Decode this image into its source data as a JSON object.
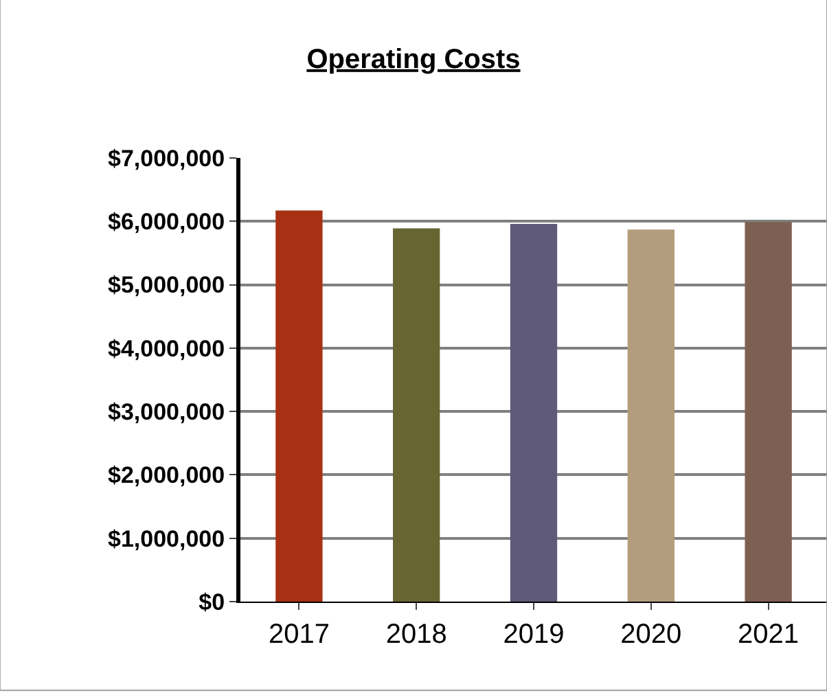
{
  "chart_data": {
    "type": "bar",
    "title": "Operating Costs",
    "categories": [
      "2017",
      "2018",
      "2019",
      "2020",
      "2021"
    ],
    "values": [
      6170000,
      5890000,
      5960000,
      5870000,
      5990000
    ],
    "colors": [
      "#a63114",
      "#676633",
      "#5f5a78",
      "#b29d7d",
      "#7e6052"
    ],
    "ylim": [
      0,
      7000000
    ],
    "yticks": [
      {
        "value": 0,
        "label": "$0"
      },
      {
        "value": 1000000,
        "label": "$1,000,000"
      },
      {
        "value": 2000000,
        "label": "$2,000,000"
      },
      {
        "value": 3000000,
        "label": "$3,000,000"
      },
      {
        "value": 4000000,
        "label": "$4,000,000"
      },
      {
        "value": 5000000,
        "label": "$5,000,000"
      },
      {
        "value": 6000000,
        "label": "$6,000,000"
      },
      {
        "value": 7000000,
        "label": "$7,000,000"
      }
    ],
    "grid": "y"
  }
}
